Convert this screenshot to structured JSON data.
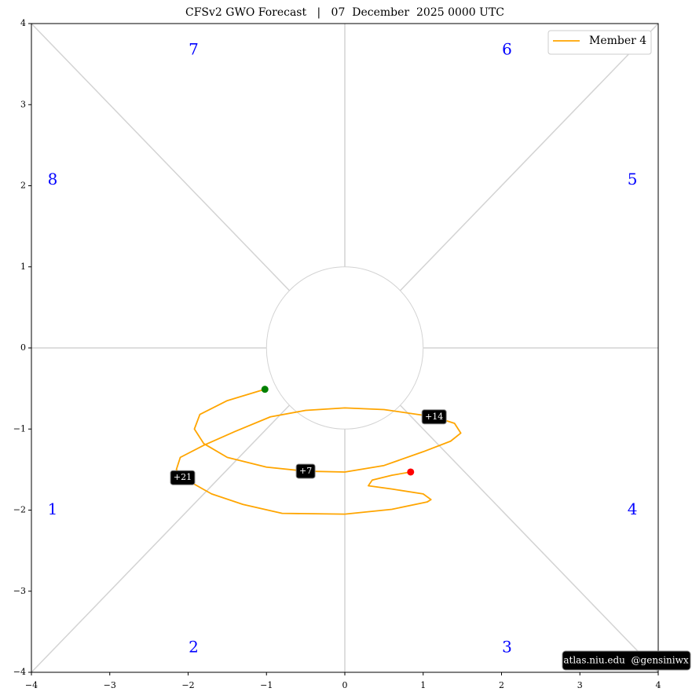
{
  "chart_data": {
    "type": "line",
    "title": "CFSv2 GWO Forecast   |   07  December  2025 0000 UTC",
    "xlim": [
      -4,
      4
    ],
    "ylim": [
      -4,
      4
    ],
    "xticks": [
      {
        "value": -4,
        "label": "−4"
      },
      {
        "value": -3,
        "label": "−3"
      },
      {
        "value": -2,
        "label": "−2"
      },
      {
        "value": -1,
        "label": "−1"
      },
      0,
      1,
      2,
      3,
      4
    ],
    "yticks": [
      {
        "value": -4,
        "label": "−4"
      },
      {
        "value": -3,
        "label": "−3"
      },
      {
        "value": -2,
        "label": "−2"
      },
      {
        "value": -1,
        "label": "−1"
      },
      0,
      1,
      2,
      3,
      4
    ],
    "legend": "upper right",
    "series": [
      {
        "name": "Member 4",
        "color": "#ffa500",
        "x": [
          -1.02,
          -1.5,
          -1.85,
          -1.92,
          -1.8,
          -1.5,
          -1.0,
          -0.5,
          0,
          0.5,
          1.0,
          1.35,
          1.48,
          1.4,
          1.14,
          0.5,
          0,
          -0.5,
          -0.95,
          -1.4,
          -1.8,
          -2.1,
          -2.15,
          -2.07,
          -1.7,
          -1.3,
          -0.8,
          0,
          0.6,
          1.05,
          1.1,
          1.0,
          0.6,
          0.3,
          0.35,
          0.6,
          0.84
        ],
        "values": [
          -0.51,
          -0.65,
          -0.82,
          -1.0,
          -1.18,
          -1.35,
          -1.47,
          -1.52,
          -1.53,
          -1.45,
          -1.28,
          -1.15,
          -1.05,
          -0.93,
          -0.85,
          -0.76,
          -0.74,
          -0.77,
          -0.85,
          -1.03,
          -1.2,
          -1.35,
          -1.5,
          -1.6,
          -1.8,
          -1.93,
          -2.04,
          -2.05,
          -1.99,
          -1.9,
          -1.87,
          -1.8,
          -1.74,
          -1.7,
          -1.63,
          -1.57,
          -1.53
        ]
      }
    ],
    "start_color": "#008000",
    "end_color": "#ff0000",
    "phase_labels": [
      "1",
      "2",
      "3",
      "4",
      "5",
      "6",
      "7",
      "8"
    ],
    "phase_color": "#0000ff",
    "annotations": [
      {
        "text": "+7",
        "x": -0.5,
        "y": -1.52
      },
      {
        "text": "+14",
        "x": 1.14,
        "y": -0.85
      },
      {
        "text": "+21",
        "x": -2.07,
        "y": -1.6
      }
    ],
    "credit": "atlas.niu.edu  @gensiniwx"
  }
}
